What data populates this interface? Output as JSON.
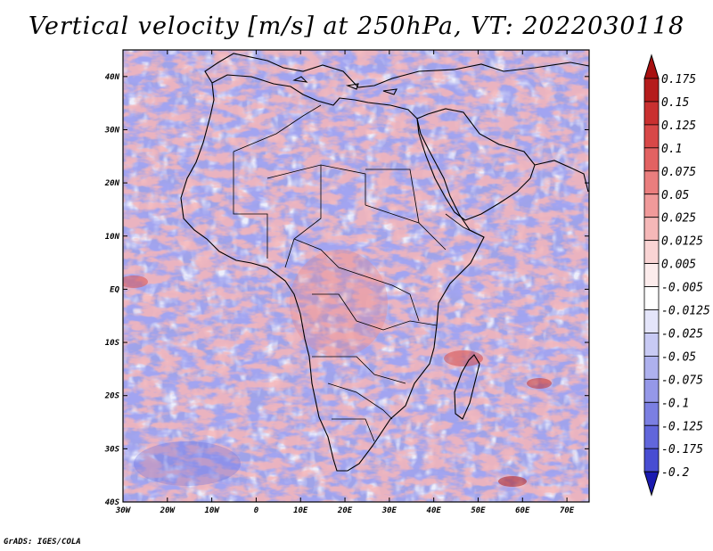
{
  "title": "Vertical velocity [m/s] at 250hPa, VT: 2022030118",
  "credit": "GrADS: IGES/COLA",
  "map": {
    "lon_range": [
      -30,
      75
    ],
    "lat_range": [
      -40,
      45
    ],
    "lon_ticks": [
      {
        "value": -30,
        "label": "30W"
      },
      {
        "value": -20,
        "label": "20W"
      },
      {
        "value": -10,
        "label": "10W"
      },
      {
        "value": 0,
        "label": "0"
      },
      {
        "value": 10,
        "label": "10E"
      },
      {
        "value": 20,
        "label": "20E"
      },
      {
        "value": 30,
        "label": "30E"
      },
      {
        "value": 40,
        "label": "40E"
      },
      {
        "value": 50,
        "label": "50E"
      },
      {
        "value": 60,
        "label": "60E"
      },
      {
        "value": 70,
        "label": "70E"
      }
    ],
    "lat_ticks": [
      {
        "value": 40,
        "label": "40N"
      },
      {
        "value": 30,
        "label": "30N"
      },
      {
        "value": 20,
        "label": "20N"
      },
      {
        "value": 10,
        "label": "10N"
      },
      {
        "value": 0,
        "label": "EQ"
      },
      {
        "value": -10,
        "label": "10S"
      },
      {
        "value": -20,
        "label": "20S"
      },
      {
        "value": -30,
        "label": "30S"
      },
      {
        "value": -40,
        "label": "40S"
      }
    ],
    "field_colors": {
      "background_lilac": "#9fa3e8",
      "deep_blue": "#5a5ee0",
      "pale_blue": "#d2d4f6",
      "red": "#e8787a",
      "pale_red": "#f4b8b8",
      "dark_red": "#c03030"
    }
  },
  "colorbar": {
    "levels": [
      {
        "label": "0.175",
        "color": "#b51c1c"
      },
      {
        "label": "0.15",
        "color": "#c93030"
      },
      {
        "label": "0.125",
        "color": "#d84848"
      },
      {
        "label": "0.1",
        "color": "#e26262"
      },
      {
        "label": "0.075",
        "color": "#ea7e7e"
      },
      {
        "label": "0.05",
        "color": "#f09a9a"
      },
      {
        "label": "0.025",
        "color": "#f5b8b8"
      },
      {
        "label": "0.0125",
        "color": "#f9d4d4"
      },
      {
        "label": "0.005",
        "color": "#fcecec"
      },
      {
        "label": "-0.005",
        "color": "#ffffff"
      },
      {
        "label": "-0.0125",
        "color": "#e4e5fa"
      },
      {
        "label": "-0.025",
        "color": "#c8caf4"
      },
      {
        "label": "-0.05",
        "color": "#aeb1ee"
      },
      {
        "label": "-0.075",
        "color": "#9598e8"
      },
      {
        "label": "-0.1",
        "color": "#7b7fe2"
      },
      {
        "label": "-0.125",
        "color": "#6166db"
      },
      {
        "label": "-0.175",
        "color": "#484dd2"
      },
      {
        "label": "-0.2",
        "color": "#2f33c4"
      }
    ],
    "top_color": "#a81010",
    "bottom_color": "#1a1ab0"
  }
}
